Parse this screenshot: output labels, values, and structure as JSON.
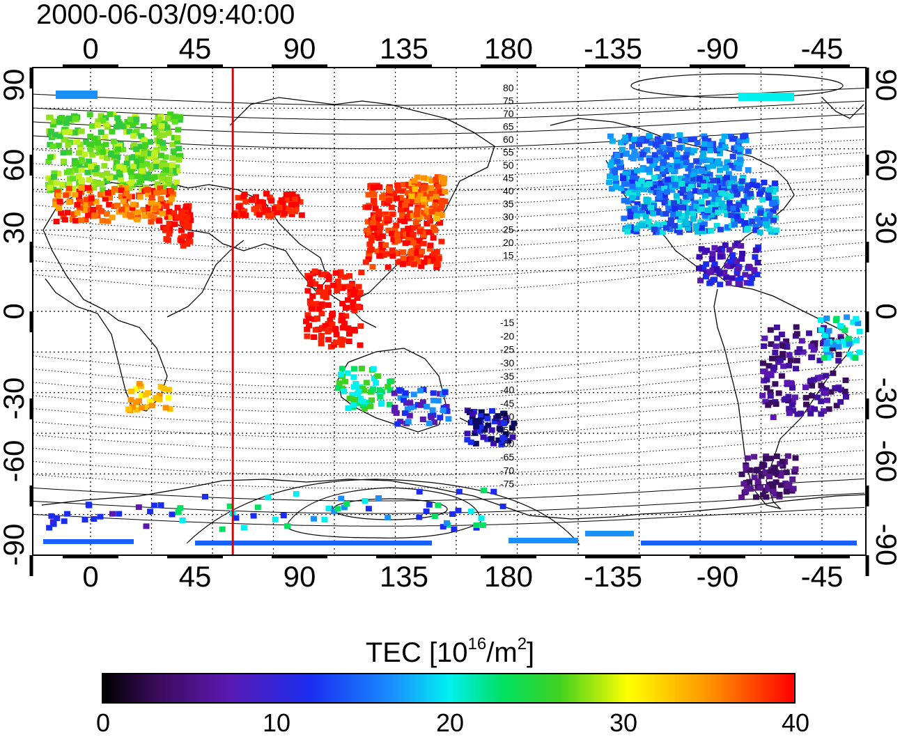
{
  "title": "2000-06-03/09:40:00",
  "map": {
    "top_lon_labels": [
      "0",
      "45",
      "90",
      "135",
      "180",
      "-135",
      "-90",
      "-45"
    ],
    "bottom_lon_labels": [
      "0",
      "45",
      "90",
      "135",
      "180",
      "-135",
      "-90",
      "-45"
    ],
    "left_lat_labels": [
      "90",
      "60",
      "30",
      "0",
      "-30",
      "-60",
      "-90"
    ],
    "right_lat_labels": [
      "90",
      "60",
      "30",
      "0",
      "-30",
      "-60",
      "-90"
    ],
    "contour_labels_north": [
      "80",
      "75",
      "70",
      "65",
      "60",
      "55",
      "50",
      "45",
      "40",
      "35",
      "30",
      "25",
      "20",
      "15"
    ],
    "contour_labels_south": [
      "-15",
      "-20",
      "-25",
      "-30",
      "-35",
      "-40",
      "-45",
      "-50",
      "-55",
      "-60",
      "-65",
      "-70",
      "-75"
    ],
    "marker_color": "#e00000",
    "marker_lon": 35
  },
  "colorbar": {
    "label_main": "TEC  [10",
    "label_exp1": "16",
    "label_mid": "/m",
    "label_exp2": "2",
    "label_end": "]",
    "min": 0,
    "max": 40,
    "ticks": [
      "0",
      "10",
      "20",
      "30",
      "40"
    ],
    "colors": [
      "#000000",
      "#3a0c5e",
      "#5a18b0",
      "#1a2cf0",
      "#1a90ff",
      "#00f0f0",
      "#00e060",
      "#40d020",
      "#ffff00",
      "#ff9000",
      "#ff0000"
    ]
  }
}
